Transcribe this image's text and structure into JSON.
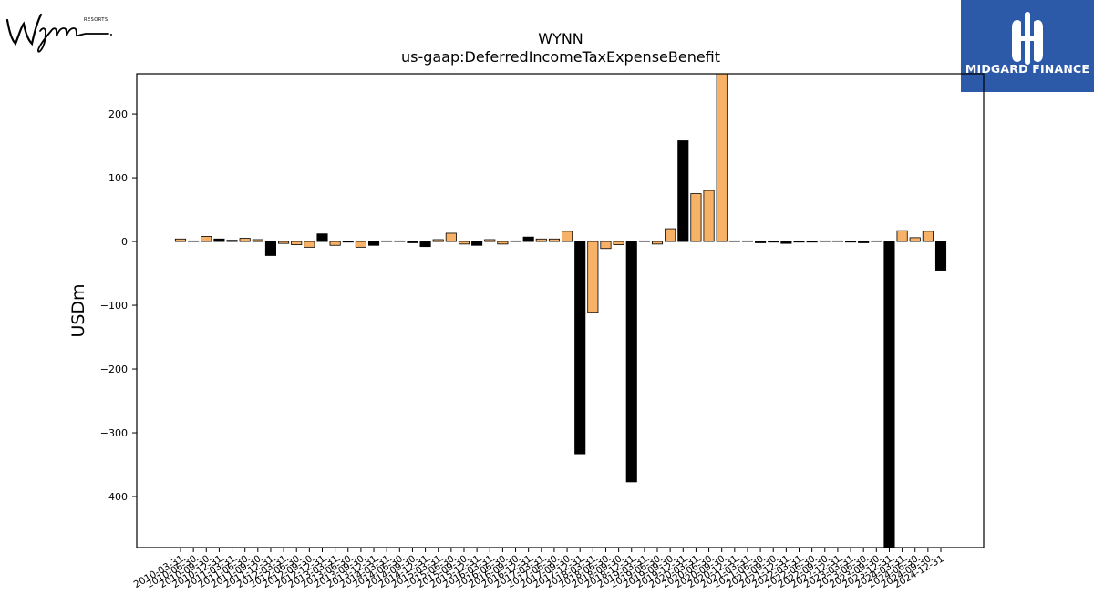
{
  "brand": {
    "logo_text": "Wynn",
    "logo_subtext": "RESORTS"
  },
  "partner": {
    "name": "MIDGARD FINANCE"
  },
  "colors": {
    "positive": "#f8b267",
    "negative": "#000000",
    "axis": "#000000"
  },
  "chart_data": {
    "type": "bar",
    "title": "WYNN",
    "subtitle": "us-gaap:DeferredIncomeTaxExpenseBenefit",
    "xlabel": "",
    "ylabel": "USDm",
    "ylim": [
      -480,
      263
    ],
    "yticks": [
      200,
      100,
      0,
      -100,
      -200,
      -300,
      -400
    ],
    "grid": false,
    "legend": "none",
    "categories": [
      "2010-03-31",
      "2010-06-30",
      "2010-09-30",
      "2010-12-31",
      "2011-03-31",
      "2011-06-30",
      "2011-09-30",
      "2011-12-31",
      "2012-03-31",
      "2012-06-30",
      "2012-09-30",
      "2012-12-31",
      "2013-03-31",
      "2013-06-30",
      "2013-09-30",
      "2013-12-31",
      "2014-03-31",
      "2014-06-30",
      "2014-09-30",
      "2014-12-31",
      "2015-03-31",
      "2015-06-30",
      "2015-09-30",
      "2015-12-31",
      "2016-03-31",
      "2016-06-30",
      "2016-09-30",
      "2016-12-31",
      "2017-03-31",
      "2017-06-30",
      "2017-09-30",
      "2017-12-31",
      "2018-03-31",
      "2018-06-30",
      "2018-09-30",
      "2018-12-31",
      "2019-03-31",
      "2019-06-30",
      "2019-09-30",
      "2019-12-31",
      "2020-03-31",
      "2020-06-30",
      "2020-09-30",
      "2020-12-31",
      "2021-03-31",
      "2021-06-30",
      "2021-09-30",
      "2021-12-31",
      "2022-03-31",
      "2022-06-30",
      "2022-09-30",
      "2022-12-31",
      "2023-03-31",
      "2023-06-30",
      "2023-09-30",
      "2023-12-31",
      "2024-03-31",
      "2024-06-30",
      "2024-09-30",
      "2024-12-31"
    ],
    "values": [
      4,
      1,
      8,
      4,
      2,
      5,
      3,
      -22,
      -3,
      -5,
      -9,
      12,
      -6,
      -1,
      -9,
      -6,
      1,
      1,
      -2,
      -8,
      3,
      13,
      -4,
      -6,
      3,
      -4,
      1,
      7,
      4,
      4,
      16,
      -333,
      -111,
      -11,
      -5,
      -377,
      1,
      -4,
      20,
      158,
      75,
      80,
      263,
      1,
      1,
      -2,
      -1,
      -3,
      -1,
      -1,
      1,
      1,
      -1,
      -2,
      1,
      -480,
      17,
      6,
      16,
      -45
    ],
    "value_colors": [
      "#f8b267",
      "#000000",
      "#f8b267",
      "#000000",
      "#000000",
      "#f8b267",
      "#f8b267",
      "#000000",
      "#f8b267",
      "#f8b267",
      "#f8b267",
      "#000000",
      "#f8b267",
      "#000000",
      "#f8b267",
      "#000000",
      "#000000",
      "#000000",
      "#000000",
      "#000000",
      "#f8b267",
      "#f8b267",
      "#f8b267",
      "#000000",
      "#f8b267",
      "#f8b267",
      "#f8b267",
      "#000000",
      "#f8b267",
      "#f8b267",
      "#f8b267",
      "#000000",
      "#f8b267",
      "#f8b267",
      "#f8b267",
      "#000000",
      "#000000",
      "#f8b267",
      "#f8b267",
      "#000000",
      "#f8b267",
      "#f8b267",
      "#f8b267",
      "#000000",
      "#000000",
      "#000000",
      "#000000",
      "#000000",
      "#000000",
      "#000000",
      "#000000",
      "#000000",
      "#000000",
      "#000000",
      "#000000",
      "#000000",
      "#f8b267",
      "#f8b267",
      "#f8b267",
      "#000000"
    ]
  }
}
